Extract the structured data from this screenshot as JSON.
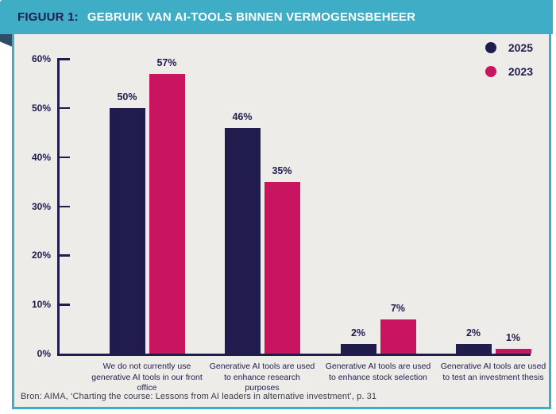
{
  "header": {
    "figure_label": "FIGUUR 1:",
    "title": "GEBRUIK VAN AI-TOOLS BINNEN VERMOGENSBEHEER"
  },
  "legend": {
    "items": [
      {
        "label": "2025",
        "color": "#211c4e"
      },
      {
        "label": "2023",
        "color": "#c9145f"
      }
    ]
  },
  "chart_data": {
    "type": "bar",
    "title": "GEBRUIK VAN AI-TOOLS BINNEN VERMOGENSBEHEER",
    "categories": [
      "We do not currently use generative AI tools in our front office",
      "Generative AI tools are used to enhance research purposes",
      "Generative AI tools are used to enhance stock selection",
      "Generative AI tools are used to test an investment thesis"
    ],
    "series": [
      {
        "name": "2025",
        "color": "#211c4e",
        "values": [
          50,
          46,
          2,
          2
        ]
      },
      {
        "name": "2023",
        "color": "#c9145f",
        "values": [
          57,
          35,
          7,
          1
        ]
      }
    ],
    "value_suffix": "%",
    "xlabel": "",
    "ylabel": "",
    "ylim": [
      0,
      60
    ],
    "yticks": [
      0,
      10,
      20,
      30,
      40,
      50,
      60
    ],
    "ytick_labels": [
      "0%",
      "10%",
      "20%",
      "30%",
      "40%",
      "50%",
      "60%"
    ],
    "grid": false,
    "legend_position": "top-right"
  },
  "footer": {
    "source": "Bron: AIMA, ‘Charting the course: Lessons from AI leaders in alternative investment’, p. 31"
  },
  "colors": {
    "teal": "#3fadc6",
    "navy": "#211c4e",
    "pink": "#c9145f",
    "panel_bg": "#edece9",
    "fold": "#2f4d66"
  }
}
